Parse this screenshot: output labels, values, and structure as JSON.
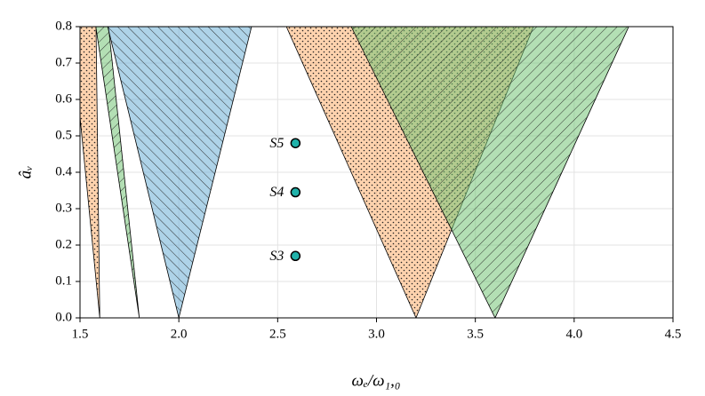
{
  "chart_data": {
    "type": "region",
    "xlabel": "ωₑ/ω₁,₀",
    "ylabel": "âᵥ",
    "xlim": [
      1.5,
      4.5
    ],
    "ylim": [
      0,
      0.8
    ],
    "xticks": [
      1.5,
      {
        "value": 2,
        "label": "2.0"
      },
      2.5,
      {
        "value": 3,
        "label": "3.0"
      },
      3.5,
      {
        "value": 4,
        "label": "4.0"
      },
      4.5
    ],
    "yticks": [
      {
        "value": 0,
        "label": "0.0"
      },
      0.1,
      0.2,
      0.3,
      0.4,
      0.5,
      0.6,
      0.7,
      0.8
    ],
    "grid": true,
    "series": [
      {
        "color": "#fdae6b",
        "hatch": "dots",
        "x": [
          1.455,
          1.6,
          1.581
        ],
        "values": [
          0.8,
          0,
          0.8
        ]
      },
      {
        "color": "#74c476",
        "hatch": "forward",
        "x": [
          1.58,
          1.8,
          1.644
        ],
        "values": [
          0.8,
          0,
          0.8
        ]
      },
      {
        "color": "#6baed6",
        "hatch": "back",
        "x": [
          1.64,
          2.0,
          2.368
        ],
        "values": [
          0.8,
          0,
          0.8
        ]
      },
      {
        "color": "#fdae6b",
        "hatch": "dots",
        "x": [
          2.544,
          3.2,
          3.794
        ],
        "values": [
          0.8,
          0,
          0.8
        ]
      },
      {
        "color": "#74c476",
        "hatch": "forward",
        "x": [
          2.872,
          3.6,
          4.276
        ],
        "values": [
          0.8,
          0,
          0.8
        ]
      }
    ],
    "points": {
      "color": "#20b2aa",
      "x": [
        2.59,
        2.59,
        2.59
      ],
      "values": [
        0.17,
        0.345,
        0.48
      ],
      "labels": [
        "S3",
        "S4",
        "S5"
      ]
    }
  }
}
